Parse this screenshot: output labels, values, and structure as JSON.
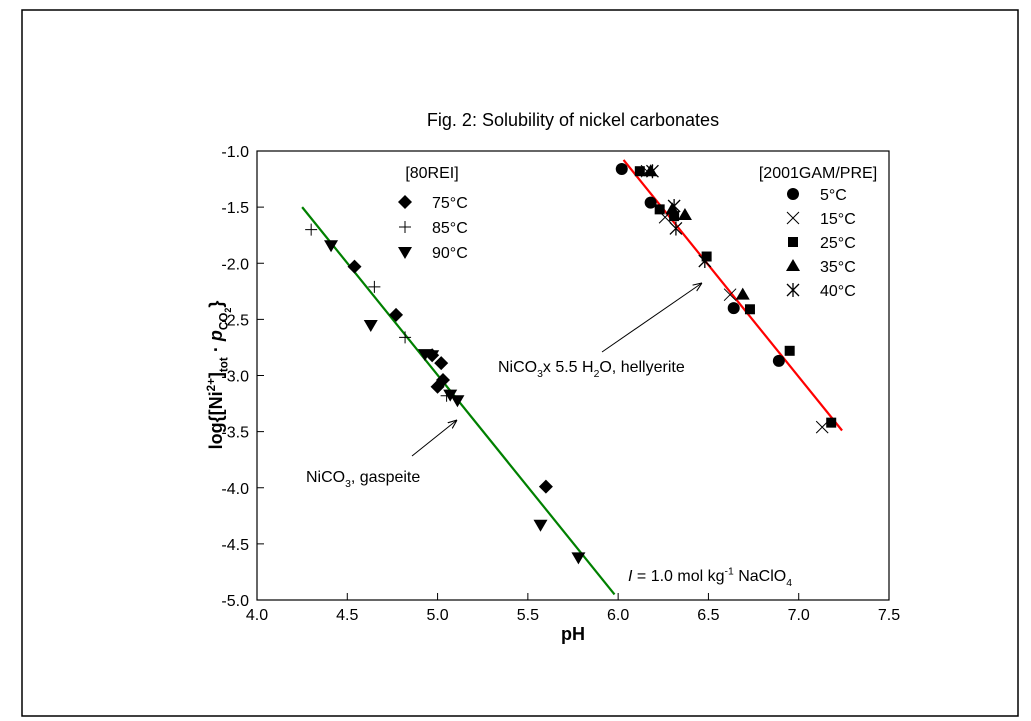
{
  "chart_data": {
    "type": "scatter",
    "title": "Fig. 2: Solubility of nickel carbonates",
    "x_label": "pH",
    "y_label": {
      "parts": [
        {
          "text": "log{[Ni",
          "style": "normal"
        },
        {
          "text": "2+",
          "style": "sup"
        },
        {
          "text": "]",
          "style": "normal"
        },
        {
          "text": "tot",
          "style": "sub"
        },
        {
          "text": " · ",
          "style": "normal"
        },
        {
          "text": "p",
          "style": "italic"
        },
        {
          "text": "CO",
          "style": "sub"
        },
        {
          "text": "2",
          "style": "subsub"
        },
        {
          "text": "}",
          "style": "normal"
        }
      ]
    },
    "xlim": [
      4.0,
      7.5
    ],
    "ylim": [
      -5.0,
      -1.0
    ],
    "xticks": [
      {
        "value": 4,
        "label": "4.0"
      },
      4.5,
      {
        "value": 5,
        "label": "5.0"
      },
      5.5,
      {
        "value": 6,
        "label": "6.0"
      },
      6.5,
      {
        "value": 7,
        "label": "7.0"
      },
      7.5
    ],
    "yticks": [
      {
        "value": -5,
        "label": "-5.0"
      },
      -4.5,
      {
        "value": -4,
        "label": "-4.0"
      },
      -3.5,
      {
        "value": -3,
        "label": "-3.0"
      },
      -2.5,
      {
        "value": -2,
        "label": "-2.0"
      },
      -1.5,
      {
        "value": -1,
        "label": "-1.0"
      }
    ],
    "groups": [
      {
        "name": "[80REI]",
        "series": [
          {
            "name": "75°C",
            "marker": "diamond",
            "color": "#000000",
            "x": [
              4.54,
              4.77,
              4.97,
              5.02,
              5.03,
              5.0,
              5.6
            ],
            "values": [
              -2.03,
              -2.46,
              -2.82,
              -2.89,
              -3.04,
              -3.1,
              -3.99
            ]
          },
          {
            "name": "85°C",
            "marker": "plus",
            "color": "#000000",
            "x": [
              4.3,
              4.65,
              4.82,
              5.05
            ],
            "values": [
              -1.7,
              -2.21,
              -2.66,
              -3.18
            ]
          },
          {
            "name": "90°C",
            "marker": "triangle-down",
            "color": "#000000",
            "x": [
              4.41,
              4.63,
              4.93,
              4.97,
              5.07,
              5.11,
              5.57,
              5.78
            ],
            "values": [
              -1.84,
              -2.55,
              -2.81,
              -2.82,
              -3.17,
              -3.22,
              -4.33,
              -4.62
            ]
          }
        ]
      },
      {
        "name": "[2001GAM/PRE]",
        "series": [
          {
            "name": "5°C",
            "marker": "circle",
            "color": "#000000",
            "x": [
              6.02,
              6.18,
              6.64,
              6.89
            ],
            "values": [
              -1.16,
              -1.46,
              -2.4,
              -2.87
            ]
          },
          {
            "name": "15°C",
            "marker": "x",
            "color": "#000000",
            "x": [
              6.16,
              6.26,
              6.62,
              7.13
            ],
            "values": [
              -1.18,
              -1.59,
              -2.28,
              -3.46
            ]
          },
          {
            "name": "25°C",
            "marker": "square",
            "color": "#000000",
            "x": [
              6.12,
              6.23,
              6.31,
              6.49,
              6.73,
              6.95,
              7.18
            ],
            "values": [
              -1.18,
              -1.52,
              -1.58,
              -1.94,
              -2.41,
              -2.78,
              -3.42
            ]
          },
          {
            "name": "35°C",
            "marker": "triangle-up",
            "color": "#000000",
            "x": [
              6.18,
              6.3,
              6.37,
              6.69
            ],
            "values": [
              -1.18,
              -1.52,
              -1.57,
              -2.28
            ]
          },
          {
            "name": "40°C",
            "marker": "asterisk",
            "color": "#000000",
            "x": [
              6.19,
              6.31,
              6.32,
              6.48
            ],
            "values": [
              -1.18,
              -1.49,
              -1.69,
              -1.98
            ]
          }
        ]
      }
    ],
    "fit_lines": [
      {
        "color": "#008000",
        "x": [
          4.25,
          5.98
        ],
        "values": [
          -1.5,
          -4.95
        ]
      },
      {
        "color": "#ff0000",
        "x": [
          6.03,
          7.24
        ],
        "values": [
          -1.08,
          -3.49
        ]
      }
    ],
    "annotations": [
      {
        "parts": [
          {
            "text": "NiCO",
            "style": "normal"
          },
          {
            "text": "3",
            "style": "sub"
          },
          {
            "text": ", gaspeite",
            "style": "normal"
          }
        ]
      },
      {
        "parts": [
          {
            "text": "NiCO",
            "style": "normal"
          },
          {
            "text": "3",
            "style": "sub"
          },
          {
            "text": "x 5.5 H",
            "style": "normal"
          },
          {
            "text": "2",
            "style": "sub"
          },
          {
            "text": "O, hellyerite",
            "style": "normal"
          }
        ]
      },
      {
        "parts": [
          {
            "text": "I",
            "style": "italic"
          },
          {
            "text": " = 1.0 mol kg",
            "style": "normal"
          },
          {
            "text": "-1",
            "style": "sup"
          },
          {
            "text": " NaClO",
            "style": "normal"
          },
          {
            "text": "4",
            "style": "sub"
          }
        ]
      }
    ]
  }
}
